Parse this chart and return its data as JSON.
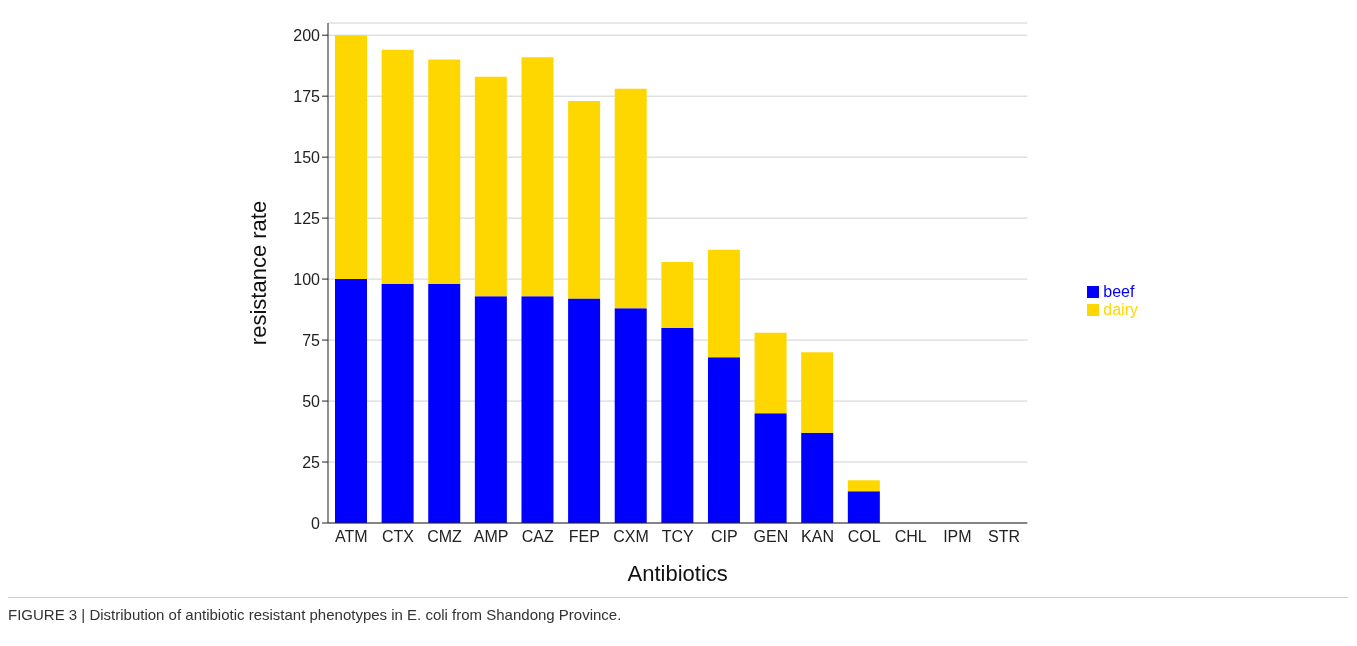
{
  "chart_data": {
    "type": "bar",
    "stacked": true,
    "xlabel": "Antibiotics",
    "ylabel": "resistance rate",
    "categories": [
      "ATM",
      "CTX",
      "CMZ",
      "AMP",
      "CAZ",
      "FEP",
      "CXM",
      "TCY",
      "CIP",
      "GEN",
      "KAN",
      "COL",
      "CHL",
      "IPM",
      "STR"
    ],
    "series": [
      {
        "name": "beef",
        "color": "#0000ff",
        "values": [
          100,
          98,
          98,
          93,
          93,
          92,
          88,
          80,
          68,
          45,
          37,
          13,
          0,
          0,
          0
        ]
      },
      {
        "name": "dairy",
        "color": "#ffd700",
        "values": [
          100,
          96,
          92,
          90,
          98,
          81,
          90,
          27,
          44,
          33,
          33,
          4.5,
          0,
          0,
          0
        ]
      }
    ],
    "ylim": [
      0,
      205
    ],
    "yticks": [
      0,
      25,
      50,
      75,
      100,
      125,
      150,
      175,
      200
    ],
    "grid": "y",
    "legend": "right",
    "annotations": [
      "FIGURE 3 | Distribution of antibiotic resistant phenotypes in E. coli from Shandong Province."
    ]
  }
}
